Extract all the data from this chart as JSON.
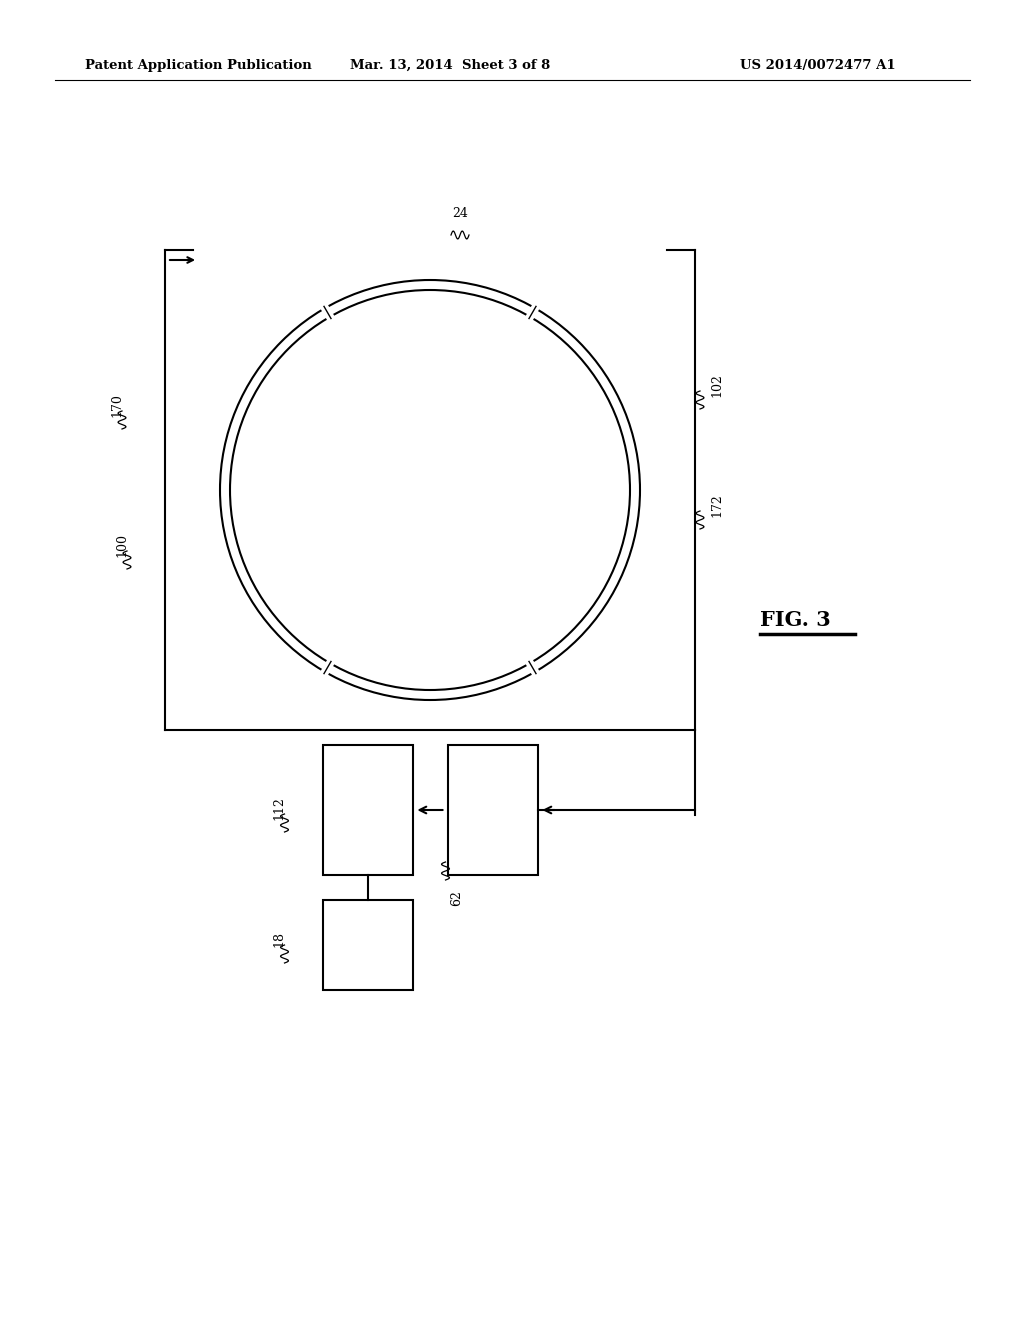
{
  "bg_color": "#ffffff",
  "line_color": "#000000",
  "header_left": "Patent Application Publication",
  "header_mid": "Mar. 13, 2014  Sheet 3 of 8",
  "header_right": "US 2014/0072477 A1",
  "fig_label": "FIG. 3",
  "label_24": "24",
  "label_102": "102",
  "label_170": "170",
  "label_172": "172",
  "label_100": "100",
  "label_112": "112",
  "label_62": "62",
  "label_18": "18",
  "fig_width": 10.24,
  "fig_height": 13.2,
  "dpi": 100
}
